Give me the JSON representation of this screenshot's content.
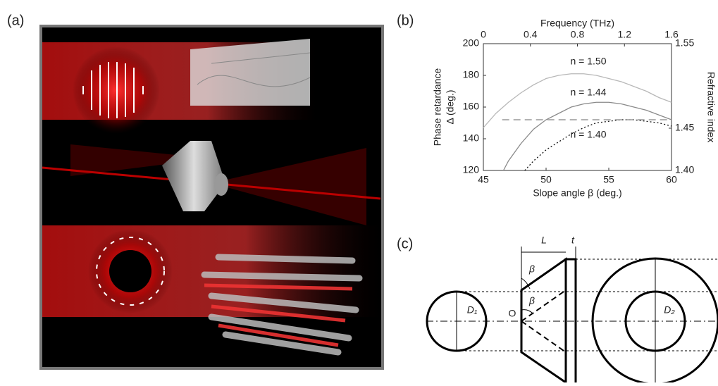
{
  "panels": {
    "a": "(a)",
    "b": "(b)",
    "c": "(c)"
  },
  "chart_data": {
    "type": "line",
    "x_label": "Slope angle β (deg.)",
    "x2_label": "Frequency (THz)",
    "y_label": [
      "Phase retardance",
      "Δ (deg.)"
    ],
    "y2_label": "Refractive index",
    "xlim": [
      45,
      60
    ],
    "xticks": [
      45,
      50,
      55,
      60
    ],
    "x2lim": [
      0,
      1.6
    ],
    "x2ticks": [
      0,
      0.4,
      0.8,
      1.2,
      1.6
    ],
    "ylim": [
      120,
      200
    ],
    "yticks": [
      120,
      140,
      160,
      180,
      200
    ],
    "y2lim": [
      1.4,
      1.55
    ],
    "y2ticks": [
      {
        "value": 1.4,
        "label": "1.40"
      },
      1.45,
      1.55
    ],
    "series": [
      {
        "name": "n = 1.50",
        "color": "#b8b8b8",
        "dash": "solid",
        "x": [
          45,
          46,
          47,
          48,
          49,
          50,
          51,
          52,
          53,
          54,
          55,
          56,
          57,
          58,
          59,
          60
        ],
        "values": [
          147,
          156,
          163,
          169,
          174,
          178,
          180,
          181,
          181,
          180,
          178,
          176,
          173,
          170,
          166,
          163
        ]
      },
      {
        "name": "n = 1.44",
        "color": "#8a8a8a",
        "dash": "solid",
        "x": [
          46.6,
          47,
          48,
          49,
          50,
          51,
          52,
          53,
          54,
          55,
          56,
          57,
          58,
          59,
          60
        ],
        "values": [
          120,
          126,
          137,
          146,
          152,
          156,
          160,
          162,
          163,
          163,
          162,
          160,
          158,
          155,
          152
        ]
      },
      {
        "name": "n = 1.40",
        "color": "#111111",
        "dash": "dotted",
        "x": [
          48.3,
          49,
          50,
          51,
          52,
          53,
          54,
          55,
          56,
          57,
          58,
          59,
          60
        ],
        "values": [
          120,
          126,
          133,
          138,
          143,
          147,
          150,
          151,
          152,
          152,
          151,
          150,
          148
        ]
      }
    ],
    "reference_line": {
      "color": "#999999",
      "dash": "dashed",
      "x": [
        46.5,
        60
      ],
      "values": [
        152,
        152
      ]
    }
  },
  "diagram": {
    "labels": [
      "L",
      "t",
      "β",
      "β",
      "O",
      "D₁",
      "D₂"
    ]
  }
}
